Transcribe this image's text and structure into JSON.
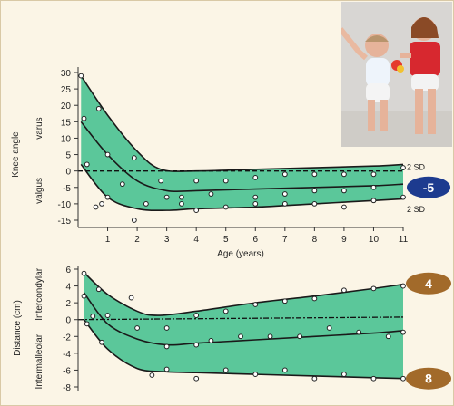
{
  "chart_data": [
    {
      "type": "area",
      "title": "",
      "ylabel": "Knee angle",
      "y_side_labels": [
        "varus",
        "valgus"
      ],
      "xlabel": "Age (years)",
      "x_ticks": [
        "1",
        "2",
        "3",
        "4",
        "5",
        "6",
        "7",
        "8",
        "9",
        "10",
        "11"
      ],
      "xlim": [
        0,
        11
      ],
      "ylim": [
        -15,
        30
      ],
      "y_ticks": [
        "30",
        "25",
        "20",
        "15",
        "10",
        "5",
        "0",
        "-5",
        "-10",
        "-15"
      ],
      "band_labels": [
        "2 SD",
        "2 SD"
      ],
      "badge": "-5",
      "badge_color": "#1d3b8f",
      "band_color": "#5bc79a",
      "upper": {
        "x": [
          0.1,
          1,
          2,
          2.8,
          4,
          6,
          8,
          10,
          11
        ],
        "y": [
          29,
          17,
          6,
          0.5,
          0,
          0.5,
          1,
          1.5,
          2
        ]
      },
      "mean": {
        "x": [
          0.1,
          1,
          2,
          3,
          4,
          6,
          8,
          10,
          11
        ],
        "y": [
          15,
          5,
          -3,
          -6,
          -6,
          -5.5,
          -5,
          -4.5,
          -4
        ]
      },
      "lower": {
        "x": [
          0.1,
          1,
          2,
          3,
          4,
          6,
          8,
          10,
          11
        ],
        "y": [
          2,
          -8,
          -11.5,
          -12,
          -11.5,
          -11,
          -10,
          -9,
          -8.5
        ]
      },
      "points": [
        [
          0.1,
          29
        ],
        [
          0.2,
          16
        ],
        [
          0.3,
          2
        ],
        [
          0.6,
          -11
        ],
        [
          0.7,
          19
        ],
        [
          0.8,
          -10
        ],
        [
          1,
          5
        ],
        [
          1,
          -8
        ],
        [
          1.5,
          -4
        ],
        [
          1.9,
          4
        ],
        [
          1.9,
          -15
        ],
        [
          2.3,
          -10
        ],
        [
          2.8,
          -3
        ],
        [
          3,
          -8
        ],
        [
          3.5,
          -8
        ],
        [
          3.5,
          -10
        ],
        [
          4,
          -3
        ],
        [
          4,
          -12
        ],
        [
          4.5,
          -7
        ],
        [
          5,
          -3
        ],
        [
          5,
          -11
        ],
        [
          6,
          -2
        ],
        [
          6,
          -8
        ],
        [
          6,
          -10
        ],
        [
          7,
          -1
        ],
        [
          7,
          -7
        ],
        [
          7,
          -10
        ],
        [
          8,
          -1
        ],
        [
          8,
          -6
        ],
        [
          8,
          -10
        ],
        [
          9,
          -1
        ],
        [
          9,
          -11
        ],
        [
          9,
          -6
        ],
        [
          10,
          -1
        ],
        [
          10,
          -5
        ],
        [
          10,
          -9
        ],
        [
          11,
          1
        ],
        [
          11,
          -8
        ]
      ]
    },
    {
      "type": "area",
      "title": "",
      "ylabel": "Distance (cm)",
      "y_side_labels": [
        "Intercondylar",
        "Intermalleolar"
      ],
      "xlim": [
        0,
        11
      ],
      "ylim": [
        -8,
        6
      ],
      "y_ticks": [
        "6",
        "4",
        "2",
        "0",
        "-2",
        "-4",
        "-6",
        "-8"
      ],
      "badges": [
        {
          "text": "4",
          "color": "#a26a2a"
        },
        {
          "text": "8",
          "color": "#a26a2a"
        }
      ],
      "band_color": "#5bc79a",
      "upper": {
        "x": [
          0.2,
          1,
          2,
          2.7,
          4,
          6,
          8,
          10,
          11
        ],
        "y": [
          5.6,
          3,
          1,
          0.5,
          1,
          2,
          2.8,
          3.7,
          4.2
        ]
      },
      "mean": {
        "x": [
          0.2,
          1,
          2,
          3,
          4,
          6,
          8,
          10,
          11
        ],
        "y": [
          3.2,
          -0.5,
          -2.3,
          -3,
          -2.8,
          -2.4,
          -2,
          -1.6,
          -1.3
        ]
      },
      "lower": {
        "x": [
          0.2,
          1,
          2,
          3,
          4,
          6,
          8,
          10,
          11
        ],
        "y": [
          0,
          -3.5,
          -5.8,
          -6.2,
          -6.3,
          -6.5,
          -6.7,
          -6.9,
          -7
        ]
      },
      "points": [
        [
          0.2,
          5.5
        ],
        [
          0.2,
          2.8
        ],
        [
          0.3,
          -0.5
        ],
        [
          0.5,
          0.4
        ],
        [
          0.7,
          3.6
        ],
        [
          0.8,
          -2.7
        ],
        [
          1,
          0.5
        ],
        [
          1.8,
          2.6
        ],
        [
          2,
          -1
        ],
        [
          2.5,
          -6.6
        ],
        [
          3,
          -1
        ],
        [
          3,
          -3.2
        ],
        [
          3,
          -5.9
        ],
        [
          4,
          0.5
        ],
        [
          4,
          -3
        ],
        [
          4,
          -7
        ],
        [
          4.5,
          -2.5
        ],
        [
          5,
          1
        ],
        [
          5,
          -6
        ],
        [
          5.5,
          -2
        ],
        [
          6,
          1.8
        ],
        [
          6,
          -6.5
        ],
        [
          6.5,
          -2
        ],
        [
          7,
          2.2
        ],
        [
          7,
          -6
        ],
        [
          7.5,
          -2
        ],
        [
          8,
          2.5
        ],
        [
          8,
          -7
        ],
        [
          8.5,
          -1
        ],
        [
          9,
          3.5
        ],
        [
          9,
          -6.5
        ],
        [
          9.5,
          -1.5
        ],
        [
          10,
          3.7
        ],
        [
          10,
          -7
        ],
        [
          10.5,
          -2
        ],
        [
          11,
          4
        ],
        [
          11,
          -7
        ],
        [
          11,
          -1.5
        ]
      ]
    }
  ]
}
